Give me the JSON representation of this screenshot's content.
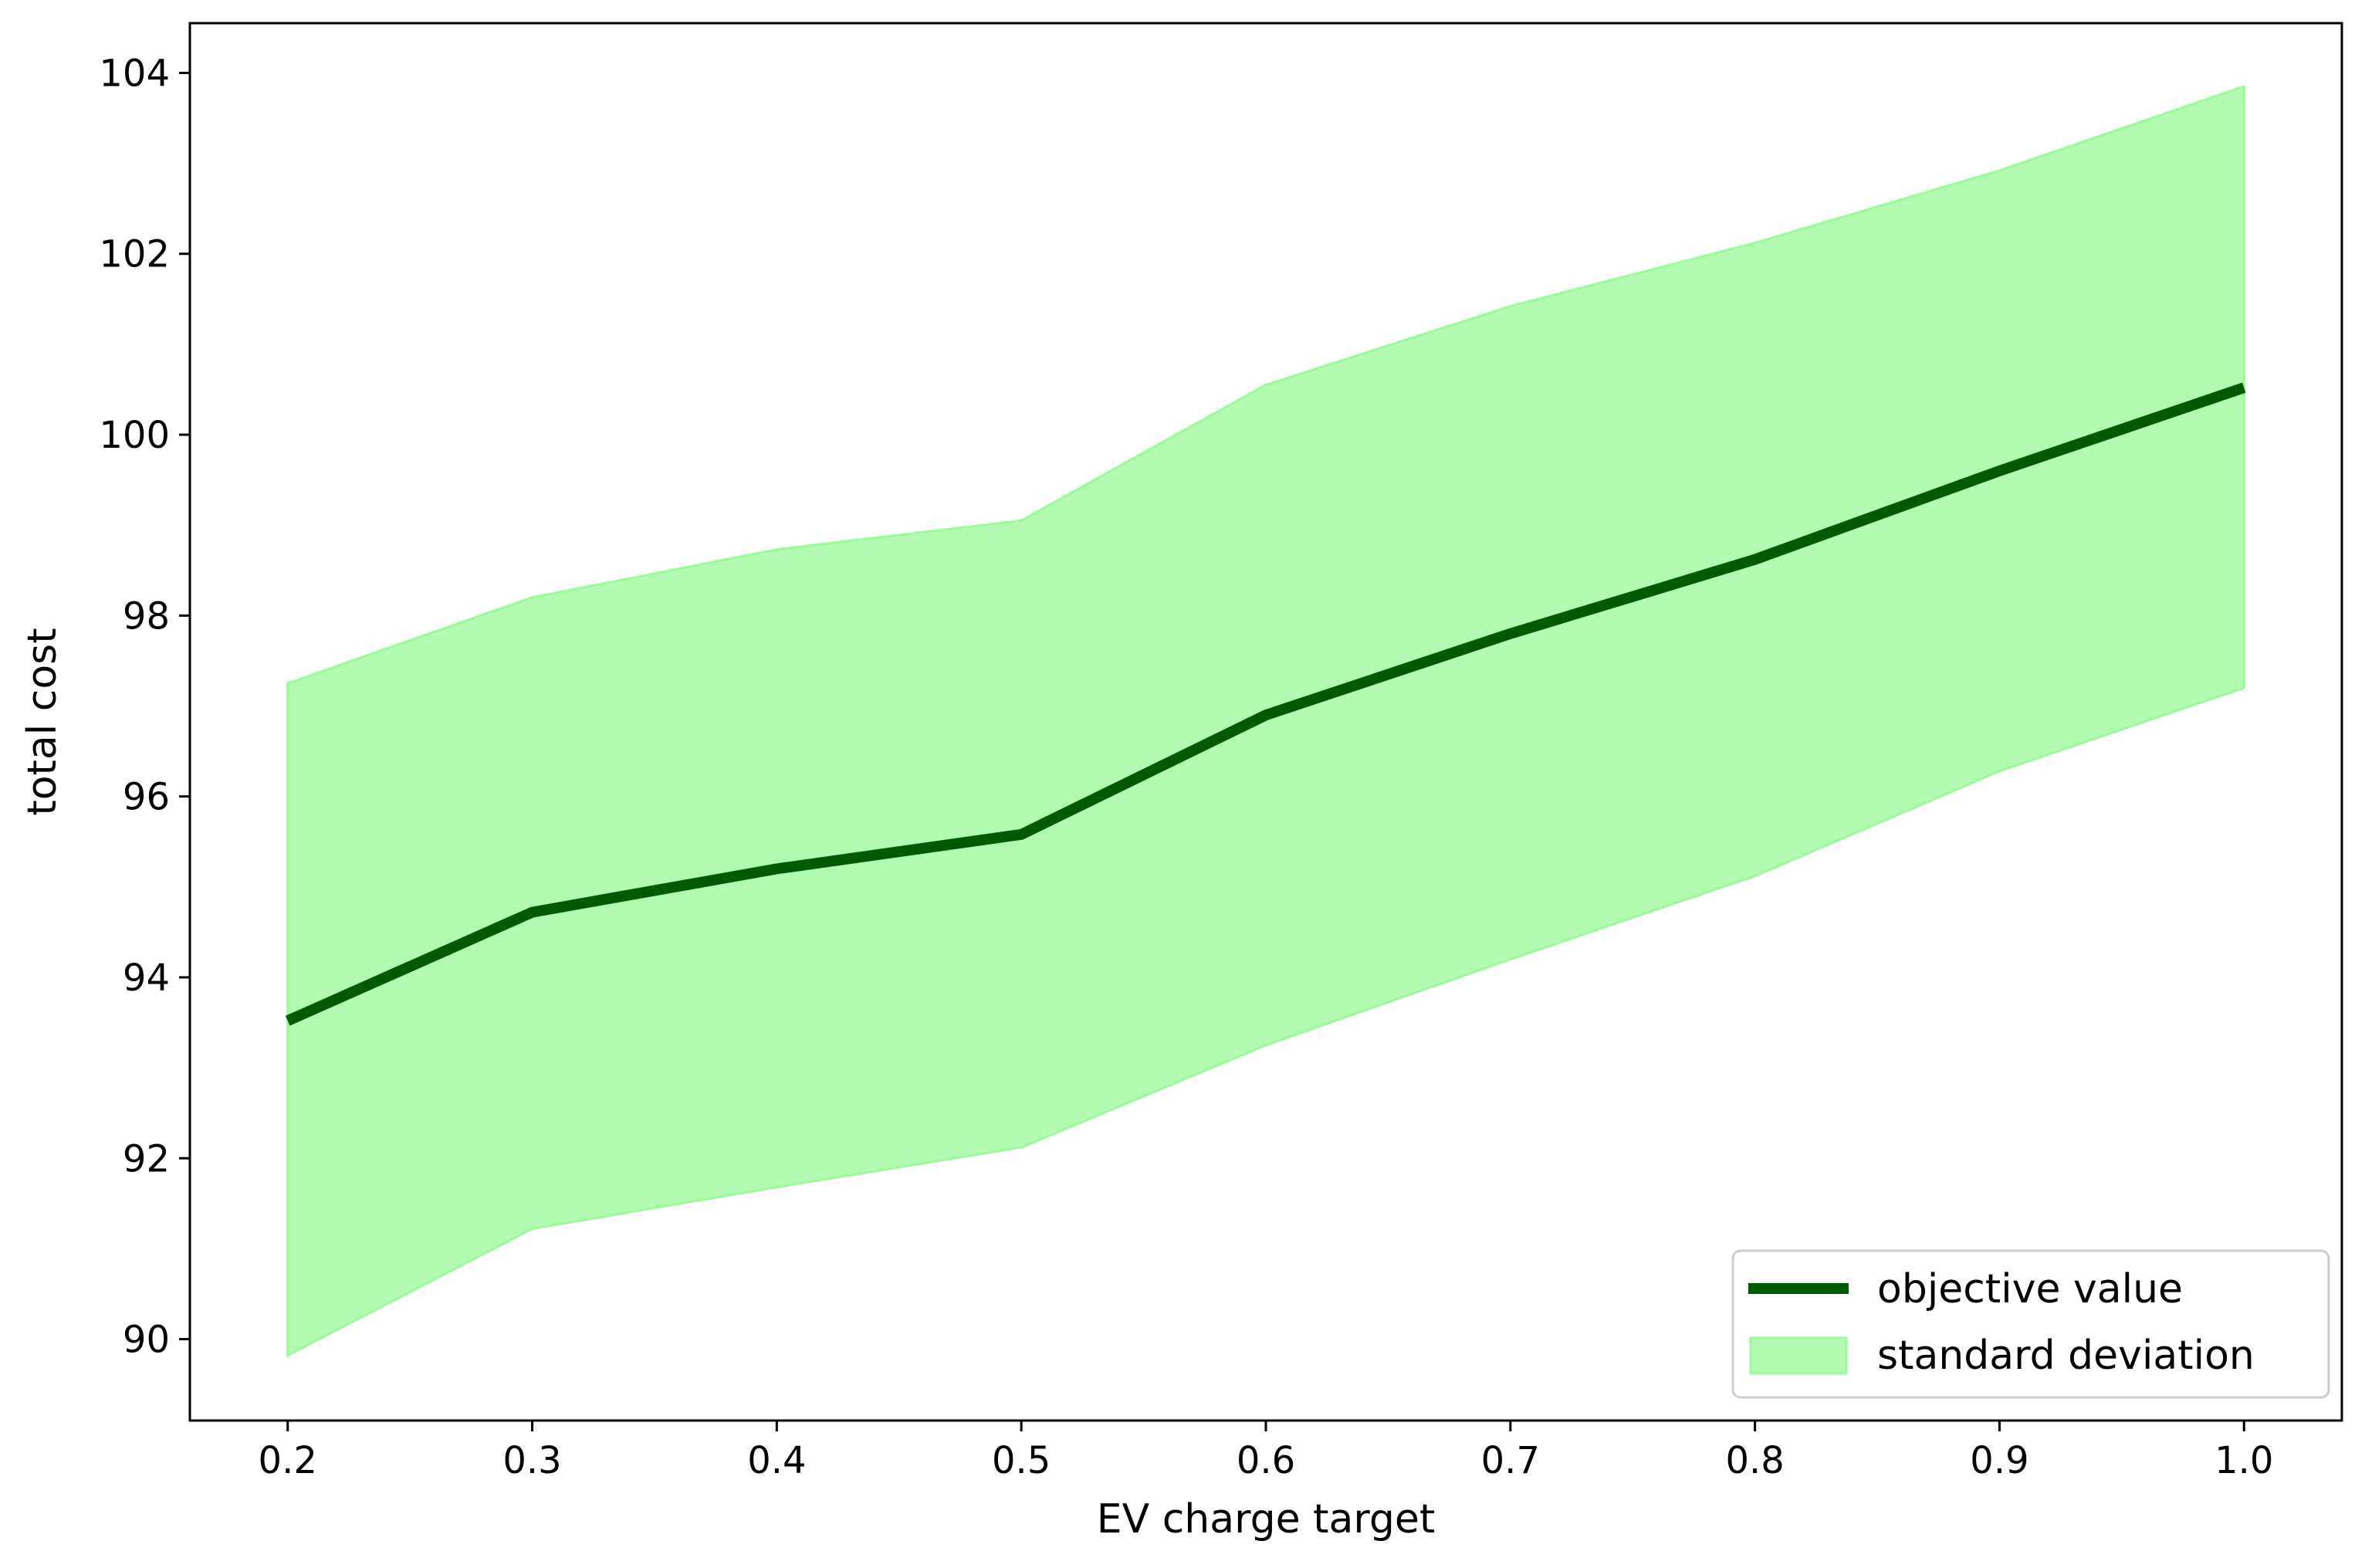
{
  "chart_data": {
    "type": "line",
    "title": "",
    "xlabel": "EV charge target",
    "ylabel": "total cost",
    "xlim": [
      0.16,
      1.04
    ],
    "ylim": [
      89.1,
      104.55
    ],
    "xticks": [
      "0.2",
      "0.3",
      "0.4",
      "0.5",
      "0.6",
      "0.7",
      "0.8",
      "0.9",
      "1.0"
    ],
    "yticks": [
      "90",
      "92",
      "94",
      "96",
      "98",
      "100",
      "102",
      "104"
    ],
    "x": [
      0.2,
      0.3,
      0.4,
      0.5,
      0.6,
      0.7,
      0.8,
      0.9,
      1.0
    ],
    "series": [
      {
        "name": "objective value",
        "color": "#005a00",
        "values": [
          93.52,
          94.72,
          95.2,
          95.58,
          96.9,
          97.8,
          98.62,
          99.6,
          100.52
        ]
      }
    ],
    "band": {
      "name": "standard deviation",
      "color": "#98fb98",
      "upper": [
        97.25,
        98.2,
        98.73,
        99.05,
        100.55,
        101.42,
        102.12,
        102.92,
        103.85
      ],
      "lower": [
        89.82,
        91.22,
        91.68,
        92.12,
        93.25,
        94.2,
        95.12,
        96.28,
        97.2
      ]
    },
    "legend_position": "lower-right",
    "grid": false
  }
}
